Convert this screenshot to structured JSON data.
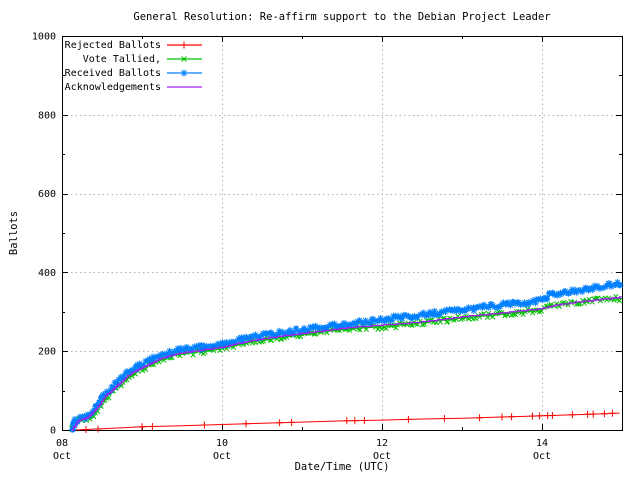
{
  "chart_data": {
    "type": "line",
    "title": "General Resolution: Re-affirm support to the Debian Project Leader",
    "xlabel": "Date/Time (UTC)",
    "ylabel": "Ballots",
    "x_axis": {
      "unit": "datetime",
      "tick_days": [
        0,
        2,
        4,
        6
      ],
      "tick_labels": [
        [
          "08",
          "Oct"
        ],
        [
          "10",
          "Oct"
        ],
        [
          "12",
          "Oct"
        ],
        [
          "14",
          "Oct"
        ]
      ],
      "minor_tick_days": [
        1,
        3,
        5
      ],
      "range_days": [
        0,
        7
      ]
    },
    "y_axis": {
      "ticks": [
        0,
        200,
        400,
        600,
        800,
        1000
      ],
      "minor_ticks": [
        100,
        300,
        500,
        700,
        900
      ],
      "range": [
        0,
        1000
      ]
    },
    "grid": {
      "enabled": true,
      "color": "#b2b2b2",
      "style": "dotted"
    },
    "legend": {
      "position": "top-left",
      "box": false
    },
    "series": [
      {
        "name": "Rejected Ballots",
        "color": "#ff0000",
        "marker": "plus",
        "dense": false,
        "step": false,
        "points": [
          [
            0.15,
            0
          ],
          [
            0.5,
            3
          ],
          [
            1,
            8
          ],
          [
            1.5,
            11
          ],
          [
            2,
            14
          ],
          [
            2.5,
            17
          ],
          [
            3,
            20
          ],
          [
            3.5,
            23
          ],
          [
            4,
            25
          ],
          [
            4.5,
            28
          ],
          [
            5,
            30
          ],
          [
            5.5,
            33
          ],
          [
            6,
            36
          ],
          [
            6.3,
            38
          ],
          [
            6.6,
            40
          ],
          [
            6.97,
            43
          ]
        ],
        "marker_days": [
          0.3,
          0.45,
          1.0,
          1.13,
          1.78,
          2.3,
          2.72,
          2.87,
          3.56,
          3.66,
          3.78,
          4.33,
          4.78,
          5.22,
          5.5,
          5.62,
          5.88,
          5.97,
          6.07,
          6.13,
          6.38,
          6.57,
          6.64,
          6.78,
          6.88
        ]
      },
      {
        "name": "Vote Tallied,",
        "color": "#00c000",
        "marker": "cross",
        "dense": true,
        "step": false,
        "points": [
          [
            0.12,
            0
          ],
          [
            0.14,
            5
          ],
          [
            0.16,
            14
          ],
          [
            0.2,
            22
          ],
          [
            0.28,
            27
          ],
          [
            0.36,
            31
          ],
          [
            0.42,
            48
          ],
          [
            0.48,
            66
          ],
          [
            0.55,
            83
          ],
          [
            0.62,
            94
          ],
          [
            0.7,
            110
          ],
          [
            0.78,
            126
          ],
          [
            0.85,
            138
          ],
          [
            0.95,
            150
          ],
          [
            1.05,
            160
          ],
          [
            1.15,
            170
          ],
          [
            1.28,
            181
          ],
          [
            1.4,
            189
          ],
          [
            1.55,
            194
          ],
          [
            1.7,
            198
          ],
          [
            1.85,
            201
          ],
          [
            2.0,
            206
          ],
          [
            2.2,
            216
          ],
          [
            2.4,
            224
          ],
          [
            2.6,
            230
          ],
          [
            2.8,
            236
          ],
          [
            3.0,
            242
          ],
          [
            3.3,
            250
          ],
          [
            3.6,
            257
          ],
          [
            4.0,
            262
          ],
          [
            4.3,
            268
          ],
          [
            4.6,
            275
          ],
          [
            4.9,
            282
          ],
          [
            5.2,
            288
          ],
          [
            5.5,
            294
          ],
          [
            5.8,
            300
          ],
          [
            6.0,
            305
          ],
          [
            6.1,
            315
          ],
          [
            6.3,
            322
          ],
          [
            6.5,
            326
          ],
          [
            6.7,
            330
          ],
          [
            7.0,
            334
          ]
        ]
      },
      {
        "name": "Received Ballots",
        "color": "#0080ff",
        "marker": "asterisk",
        "dense": true,
        "step": false,
        "points": [
          [
            0.12,
            0
          ],
          [
            0.13,
            6
          ],
          [
            0.15,
            16
          ],
          [
            0.18,
            25
          ],
          [
            0.25,
            30
          ],
          [
            0.33,
            34
          ],
          [
            0.36,
            40
          ],
          [
            0.42,
            58
          ],
          [
            0.48,
            78
          ],
          [
            0.55,
            95
          ],
          [
            0.62,
            105
          ],
          [
            0.7,
            122
          ],
          [
            0.78,
            138
          ],
          [
            0.85,
            150
          ],
          [
            0.95,
            162
          ],
          [
            1.05,
            172
          ],
          [
            1.15,
            182
          ],
          [
            1.28,
            193
          ],
          [
            1.4,
            200
          ],
          [
            1.55,
            205
          ],
          [
            1.7,
            209
          ],
          [
            1.85,
            212
          ],
          [
            2.0,
            218
          ],
          [
            2.2,
            228
          ],
          [
            2.4,
            236
          ],
          [
            2.6,
            242
          ],
          [
            2.8,
            248
          ],
          [
            3.0,
            254
          ],
          [
            3.3,
            262
          ],
          [
            3.6,
            270
          ],
          [
            4.0,
            280
          ],
          [
            4.3,
            287
          ],
          [
            4.6,
            295
          ],
          [
            4.9,
            302
          ],
          [
            5.2,
            310
          ],
          [
            5.5,
            317
          ],
          [
            5.8,
            323
          ],
          [
            6.0,
            328
          ],
          [
            6.1,
            342
          ],
          [
            6.3,
            350
          ],
          [
            6.5,
            356
          ],
          [
            6.7,
            363
          ],
          [
            7.0,
            373
          ]
        ]
      },
      {
        "name": "Acknowledgements",
        "color": "#a020f0",
        "marker": "none",
        "dense": false,
        "step": true,
        "points": [
          [
            0.12,
            0
          ],
          [
            0.2,
            24
          ],
          [
            0.3,
            30
          ],
          [
            0.42,
            52
          ],
          [
            0.55,
            88
          ],
          [
            0.7,
            115
          ],
          [
            0.85,
            142
          ],
          [
            1.0,
            158
          ],
          [
            1.15,
            174
          ],
          [
            1.3,
            186
          ],
          [
            1.45,
            194
          ],
          [
            1.7,
            201
          ],
          [
            2.0,
            210
          ],
          [
            2.4,
            228
          ],
          [
            2.8,
            240
          ],
          [
            3.2,
            250
          ],
          [
            3.6,
            260
          ],
          [
            4.0,
            266
          ],
          [
            4.5,
            274
          ],
          [
            5.0,
            287
          ],
          [
            5.5,
            297
          ],
          [
            6.0,
            308
          ],
          [
            6.2,
            318
          ],
          [
            6.5,
            326
          ],
          [
            7.0,
            337
          ]
        ]
      }
    ]
  }
}
